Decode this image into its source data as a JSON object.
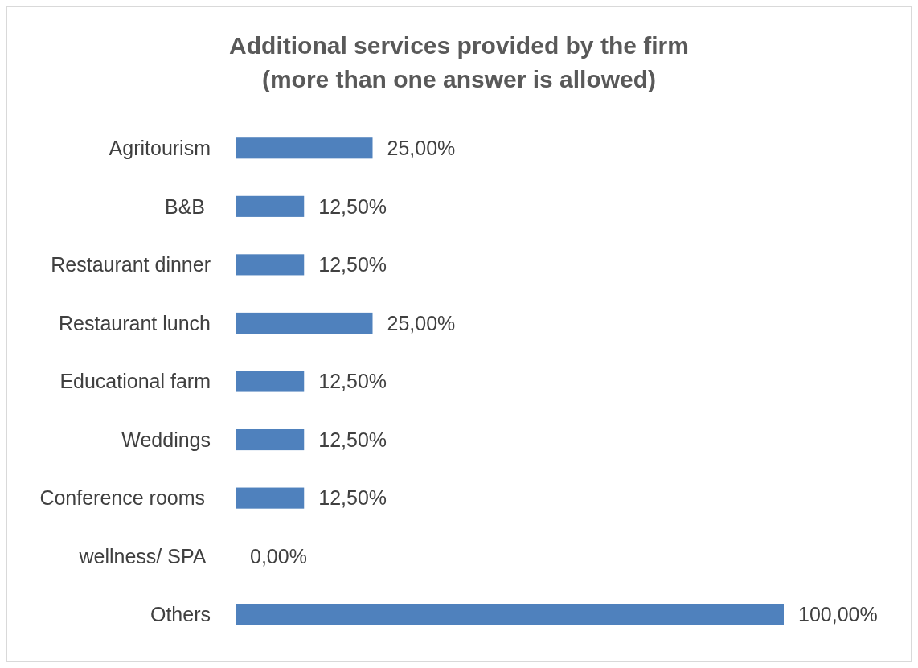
{
  "chart_data": {
    "type": "bar",
    "orientation": "horizontal",
    "title": "Additional services provided by the firm\n(more than one answer is allowed)",
    "categories": [
      "Agritourism",
      "B&B ",
      "Restaurant dinner",
      "Restaurant lunch",
      "Educational farm",
      "Weddings",
      "Conference rooms ",
      "wellness/ SPA ",
      "Others"
    ],
    "values": [
      25,
      12.5,
      12.5,
      25,
      12.5,
      12.5,
      12.5,
      0,
      100
    ],
    "value_labels": [
      "25,00%",
      "12,50%",
      "12,50%",
      "25,00%",
      "12,50%",
      "12,50%",
      "12,50%",
      "0,00%",
      "100,00%"
    ],
    "color": "#4f81bd"
  }
}
